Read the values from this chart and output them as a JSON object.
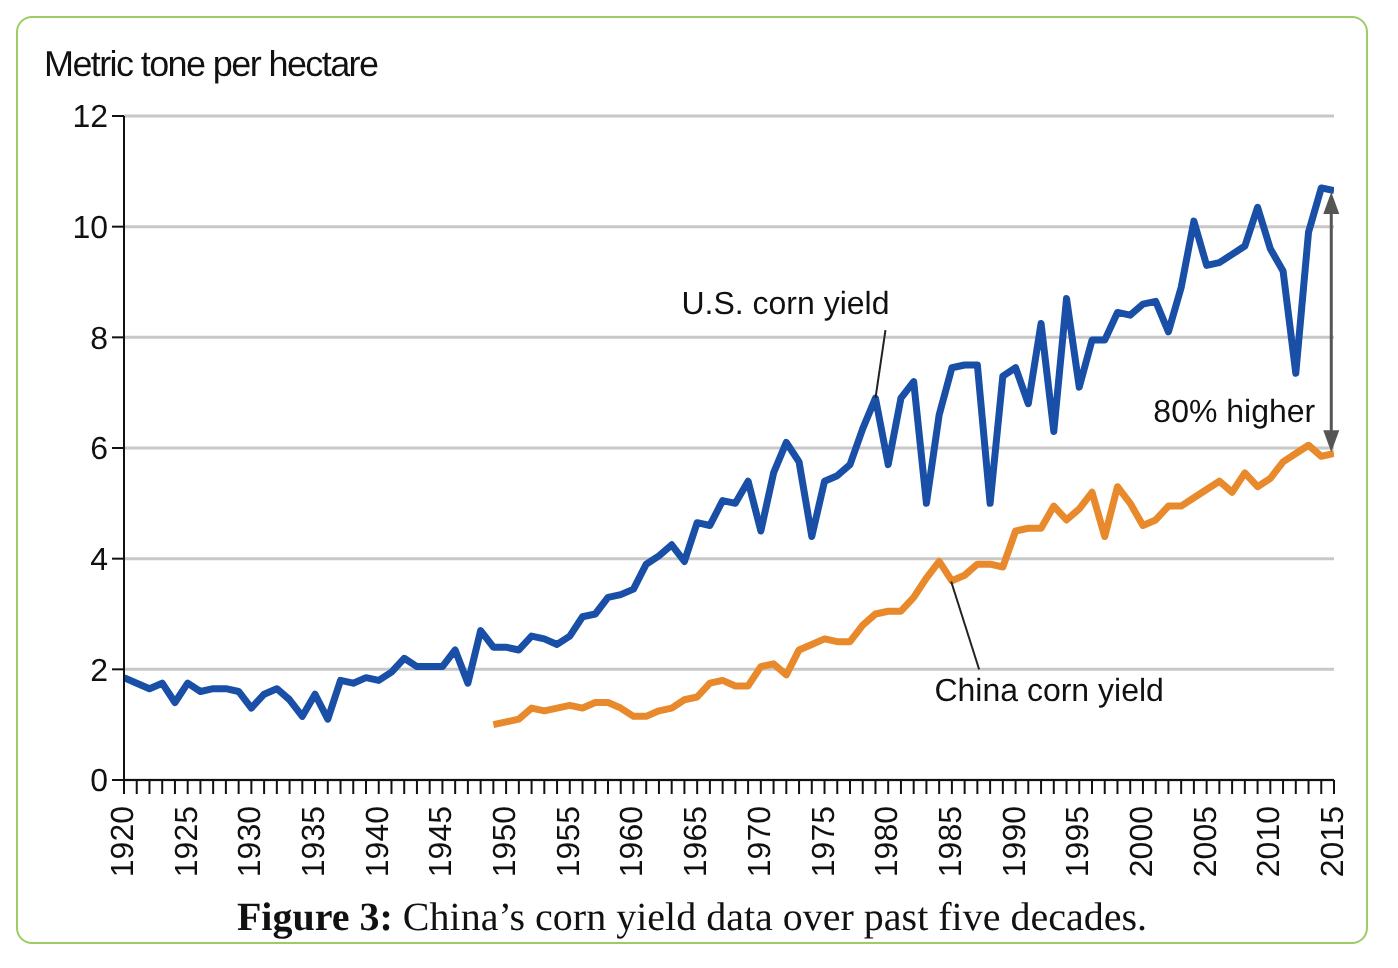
{
  "chart_data": {
    "type": "line",
    "ylabel": "Metric tone per hectare",
    "annotations": [
      "80% higher",
      "Figure 3: China’s corn yield data over past five decades."
    ],
    "x": [
      1920,
      1921,
      1922,
      1923,
      1924,
      1925,
      1926,
      1927,
      1928,
      1929,
      1930,
      1931,
      1932,
      1933,
      1934,
      1935,
      1936,
      1937,
      1938,
      1939,
      1940,
      1941,
      1942,
      1943,
      1944,
      1945,
      1946,
      1947,
      1948,
      1949,
      1950,
      1951,
      1952,
      1953,
      1954,
      1955,
      1956,
      1957,
      1958,
      1959,
      1960,
      1961,
      1962,
      1963,
      1964,
      1965,
      1966,
      1967,
      1968,
      1969,
      1970,
      1971,
      1972,
      1973,
      1974,
      1975,
      1976,
      1977,
      1978,
      1979,
      1980,
      1981,
      1982,
      1983,
      1984,
      1985,
      1986,
      1987,
      1988,
      1989,
      1990,
      1991,
      1992,
      1993,
      1994,
      1995,
      1996,
      1997,
      1998,
      1999,
      2000,
      2001,
      2002,
      2003,
      2004,
      2005,
      2006,
      2007,
      2008,
      2009,
      2010,
      2011,
      2012,
      2013,
      2014,
      2015
    ],
    "series": [
      {
        "name": "U.S. corn yield",
        "color": "#1a4fa8",
        "values": [
          1.85,
          1.75,
          1.65,
          1.75,
          1.4,
          1.75,
          1.6,
          1.65,
          1.65,
          1.6,
          1.3,
          1.55,
          1.65,
          1.45,
          1.15,
          1.55,
          1.1,
          1.8,
          1.75,
          1.85,
          1.8,
          1.95,
          2.2,
          2.05,
          2.05,
          2.05,
          2.35,
          1.75,
          2.7,
          2.4,
          2.4,
          2.35,
          2.6,
          2.55,
          2.45,
          2.6,
          2.95,
          3.0,
          3.3,
          3.35,
          3.45,
          3.9,
          4.05,
          4.25,
          3.95,
          4.65,
          4.6,
          5.05,
          5.0,
          5.4,
          4.5,
          5.55,
          6.1,
          5.75,
          4.4,
          5.4,
          5.5,
          5.7,
          6.35,
          6.9,
          5.7,
          6.9,
          7.2,
          5.0,
          6.6,
          7.45,
          7.5,
          7.5,
          5.0,
          7.3,
          7.45,
          6.8,
          8.25,
          6.3,
          8.7,
          7.1,
          7.95,
          7.95,
          8.45,
          8.4,
          8.6,
          8.65,
          8.1,
          8.9,
          10.1,
          9.3,
          9.35,
          9.5,
          9.65,
          10.35,
          9.6,
          9.2,
          7.35,
          9.9,
          10.7,
          10.65
        ]
      },
      {
        "name": "China corn yield",
        "color": "#e8892b",
        "values": [
          null,
          null,
          null,
          null,
          null,
          null,
          null,
          null,
          null,
          null,
          null,
          null,
          null,
          null,
          null,
          null,
          null,
          null,
          null,
          null,
          null,
          null,
          null,
          null,
          null,
          null,
          null,
          null,
          null,
          1.0,
          1.05,
          1.1,
          1.3,
          1.25,
          1.3,
          1.35,
          1.3,
          1.4,
          1.4,
          1.3,
          1.15,
          1.15,
          1.25,
          1.3,
          1.45,
          1.5,
          1.75,
          1.8,
          1.7,
          1.7,
          2.05,
          2.1,
          1.9,
          2.35,
          2.45,
          2.55,
          2.5,
          2.5,
          2.8,
          3.0,
          3.05,
          3.05,
          3.3,
          3.65,
          3.95,
          3.6,
          3.7,
          3.9,
          3.9,
          3.85,
          4.5,
          4.55,
          4.55,
          4.95,
          4.7,
          4.9,
          5.2,
          4.4,
          5.3,
          5.0,
          4.6,
          4.7,
          4.95,
          4.95,
          5.1,
          5.25,
          5.4,
          5.2,
          5.55,
          5.3,
          5.45,
          5.75,
          5.9,
          6.05,
          5.85,
          5.9
        ]
      }
    ],
    "xlim": [
      1920,
      2015
    ],
    "xticks": [
      1920,
      {
        "value": 1921,
        "label": null
      },
      {
        "value": 1922,
        "label": null
      },
      {
        "value": 1923,
        "label": null
      },
      {
        "value": 1924,
        "label": null
      },
      1925,
      {
        "value": 1926,
        "label": null
      },
      {
        "value": 1927,
        "label": null
      },
      {
        "value": 1928,
        "label": null
      },
      {
        "value": 1929,
        "label": null
      },
      1930,
      {
        "value": 1931,
        "label": null
      },
      {
        "value": 1932,
        "label": null
      },
      {
        "value": 1933,
        "label": null
      },
      {
        "value": 1934,
        "label": null
      },
      1935,
      {
        "value": 1936,
        "label": null
      },
      {
        "value": 1937,
        "label": null
      },
      {
        "value": 1938,
        "label": null
      },
      {
        "value": 1939,
        "label": null
      },
      1940,
      {
        "value": 1941,
        "label": null
      },
      {
        "value": 1942,
        "label": null
      },
      {
        "value": 1943,
        "label": null
      },
      {
        "value": 1944,
        "label": null
      },
      1945,
      {
        "value": 1946,
        "label": null
      },
      {
        "value": 1947,
        "label": null
      },
      {
        "value": 1948,
        "label": null
      },
      {
        "value": 1949,
        "label": null
      },
      1950,
      {
        "value": 1951,
        "label": null
      },
      {
        "value": 1952,
        "label": null
      },
      {
        "value": 1953,
        "label": null
      },
      {
        "value": 1954,
        "label": null
      },
      1955,
      {
        "value": 1956,
        "label": null
      },
      {
        "value": 1957,
        "label": null
      },
      {
        "value": 1958,
        "label": null
      },
      {
        "value": 1959,
        "label": null
      },
      1960,
      {
        "value": 1961,
        "label": null
      },
      {
        "value": 1962,
        "label": null
      },
      {
        "value": 1963,
        "label": null
      },
      {
        "value": 1964,
        "label": null
      },
      1965,
      {
        "value": 1966,
        "label": null
      },
      {
        "value": 1967,
        "label": null
      },
      {
        "value": 1968,
        "label": null
      },
      {
        "value": 1969,
        "label": null
      },
      1970,
      {
        "value": 1971,
        "label": null
      },
      {
        "value": 1972,
        "label": null
      },
      {
        "value": 1973,
        "label": null
      },
      {
        "value": 1974,
        "label": null
      },
      1975,
      {
        "value": 1976,
        "label": null
      },
      {
        "value": 1977,
        "label": null
      },
      {
        "value": 1978,
        "label": null
      },
      {
        "value": 1979,
        "label": null
      },
      1980,
      {
        "value": 1981,
        "label": null
      },
      {
        "value": 1982,
        "label": null
      },
      {
        "value": 1983,
        "label": null
      },
      {
        "value": 1984,
        "label": null
      },
      1985,
      {
        "value": 1986,
        "label": null
      },
      {
        "value": 1987,
        "label": null
      },
      {
        "value": 1988,
        "label": null
      },
      {
        "value": 1989,
        "label": null
      },
      1990,
      {
        "value": 1991,
        "label": null
      },
      {
        "value": 1992,
        "label": null
      },
      {
        "value": 1993,
        "label": null
      },
      {
        "value": 1994,
        "label": null
      },
      1995,
      {
        "value": 1996,
        "label": null
      },
      {
        "value": 1997,
        "label": null
      },
      {
        "value": 1998,
        "label": null
      },
      {
        "value": 1999,
        "label": null
      },
      2000,
      {
        "value": 2001,
        "label": null
      },
      {
        "value": 2002,
        "label": null
      },
      {
        "value": 2003,
        "label": null
      },
      {
        "value": 2004,
        "label": null
      },
      2005,
      {
        "value": 2006,
        "label": null
      },
      {
        "value": 2007,
        "label": null
      },
      {
        "value": 2008,
        "label": null
      },
      {
        "value": 2009,
        "label": null
      },
      2010,
      {
        "value": 2011,
        "label": null
      },
      {
        "value": 2012,
        "label": null
      },
      {
        "value": 2013,
        "label": null
      },
      {
        "value": 2014,
        "label": null
      },
      2015
    ],
    "ylim": [
      0,
      12
    ],
    "yticks": [
      0,
      2,
      4,
      6,
      8,
      10,
      12
    ],
    "grid": "y",
    "marker": "none",
    "line_style": "solid"
  }
}
